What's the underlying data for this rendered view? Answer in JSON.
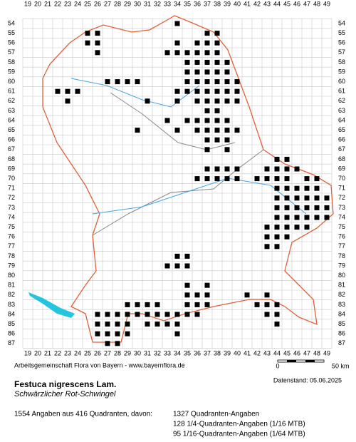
{
  "map": {
    "columns": [
      19,
      20,
      21,
      22,
      23,
      24,
      25,
      26,
      27,
      28,
      29,
      30,
      31,
      32,
      33,
      34,
      35,
      36,
      37,
      38,
      39,
      40,
      41,
      42,
      43,
      44,
      45,
      46,
      47,
      48,
      49
    ],
    "rows": [
      54,
      55,
      56,
      57,
      58,
      59,
      60,
      61,
      62,
      63,
      64,
      65,
      66,
      67,
      68,
      69,
      70,
      71,
      72,
      73,
      74,
      75,
      76,
      77,
      78,
      79,
      80,
      81,
      82,
      83,
      84,
      85,
      86,
      87
    ],
    "occurrences": [
      {
        "row": 54,
        "cols": [
          34
        ]
      },
      {
        "row": 55,
        "cols": [
          25,
          26,
          37,
          38
        ]
      },
      {
        "row": 56,
        "cols": [
          25,
          26,
          34,
          36,
          37,
          38
        ]
      },
      {
        "row": 57,
        "cols": [
          26,
          33,
          34,
          35,
          36,
          37,
          38
        ]
      },
      {
        "row": 58,
        "cols": [
          35,
          36,
          37,
          38,
          39
        ]
      },
      {
        "row": 59,
        "cols": [
          35,
          36,
          37,
          38,
          39
        ]
      },
      {
        "row": 60,
        "cols": [
          27,
          28,
          29,
          30,
          35,
          36,
          37,
          38,
          39,
          40
        ]
      },
      {
        "row": 61,
        "cols": [
          22,
          23,
          24,
          34,
          35,
          36,
          37,
          38,
          39,
          40
        ]
      },
      {
        "row": 62,
        "cols": [
          23,
          31,
          34,
          36,
          37,
          38,
          39,
          40
        ]
      },
      {
        "row": 63,
        "cols": [
          37,
          38
        ]
      },
      {
        "row": 64,
        "cols": [
          33,
          35,
          36,
          37,
          38,
          39
        ]
      },
      {
        "row": 65,
        "cols": [
          30,
          34,
          36,
          37,
          38,
          39,
          40
        ]
      },
      {
        "row": 66,
        "cols": [
          37,
          38,
          39
        ]
      },
      {
        "row": 67,
        "cols": [
          37,
          39
        ]
      },
      {
        "row": 68,
        "cols": [
          44,
          45
        ]
      },
      {
        "row": 69,
        "cols": [
          37,
          38,
          39,
          40,
          43,
          44,
          45,
          46
        ]
      },
      {
        "row": 70,
        "cols": [
          36,
          37,
          38,
          39,
          40,
          42,
          43,
          44,
          45,
          47,
          48
        ]
      },
      {
        "row": 71,
        "cols": [
          44,
          45,
          46,
          47,
          48
        ]
      },
      {
        "row": 72,
        "cols": [
          44,
          45,
          46,
          47,
          48,
          49
        ]
      },
      {
        "row": 73,
        "cols": [
          44,
          45,
          46,
          47,
          48,
          49
        ]
      },
      {
        "row": 74,
        "cols": [
          44,
          45,
          46,
          47,
          48,
          49
        ]
      },
      {
        "row": 75,
        "cols": [
          43,
          44,
          45,
          46,
          47
        ]
      },
      {
        "row": 76,
        "cols": [
          43,
          44,
          45
        ]
      },
      {
        "row": 77,
        "cols": [
          43,
          44
        ]
      },
      {
        "row": 78,
        "cols": [
          34,
          35
        ]
      },
      {
        "row": 79,
        "cols": [
          33,
          34,
          35
        ]
      },
      {
        "row": 81,
        "cols": [
          35,
          37
        ]
      },
      {
        "row": 82,
        "cols": [
          35,
          36,
          37,
          41,
          43
        ]
      },
      {
        "row": 83,
        "cols": [
          29,
          30,
          31,
          32,
          35,
          36,
          37,
          42,
          43,
          44
        ]
      },
      {
        "row": 84,
        "cols": [
          26,
          27,
          28,
          29,
          30,
          31,
          32,
          33,
          34,
          35,
          36,
          43,
          44
        ]
      },
      {
        "row": 85,
        "cols": [
          26,
          27,
          28,
          29,
          31,
          32,
          33,
          34,
          44
        ]
      },
      {
        "row": 86,
        "cols": [
          26,
          27,
          28,
          29,
          34
        ]
      },
      {
        "row": 87,
        "cols": [
          27,
          28
        ]
      }
    ],
    "scale_labels": [
      "0",
      "50 km"
    ]
  },
  "footer": {
    "source": "Arbeitsgemeinschaft Flora von Bayern - www.bayernflora.de",
    "date": "Datenstand: 05.06.2025",
    "species": "Festuca nigrescens Lam.",
    "common_name": "Schwärzlicher Rot-Schwingel",
    "summary": "1554 Angaben aus 416 Quadranten, davon:",
    "details": [
      "1327 Quadranten-Angaben",
      "128 1/4-Quadranten-Angaben (1/16 MTB)",
      "95 1/16-Quadranten-Angaben (1/64 MTB)"
    ]
  }
}
